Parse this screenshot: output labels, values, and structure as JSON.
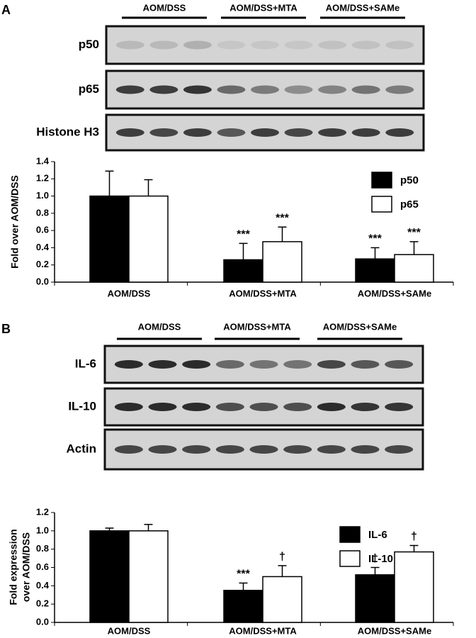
{
  "panels": [
    {
      "label": "A",
      "groups": [
        "AOM/DSS",
        "AOM/DSS+MTA",
        "AOM/DSS+SAMe"
      ],
      "blots": [
        "p50",
        "p65",
        "Histone H3"
      ]
    },
    {
      "label": "B",
      "groups": [
        "AOM/DSS",
        "AOM/DSS+MTA",
        "AOM/DSS+SAMe"
      ],
      "blots": [
        "IL-6",
        "IL-10",
        "Actin"
      ]
    }
  ],
  "chart_data": [
    {
      "type": "bar",
      "ylabel": [
        "Fold over AOM/DSS"
      ],
      "categories": [
        "AOM/DSS",
        "AOM/DSS+MTA",
        "AOM/DSS+SAMe"
      ],
      "series": [
        {
          "name": "p50",
          "color": "#000000",
          "values": [
            1.0,
            0.26,
            0.27
          ],
          "errors": [
            0.29,
            0.19,
            0.13
          ],
          "annotations": [
            null,
            "***",
            "***"
          ]
        },
        {
          "name": "p65",
          "color": "#ffffff",
          "values": [
            1.0,
            0.47,
            0.32
          ],
          "errors": [
            0.19,
            0.17,
            0.15
          ],
          "annotations": [
            null,
            "***",
            "***"
          ]
        }
      ],
      "ylim": [
        0,
        1.4
      ],
      "yticks": [
        {
          "value": 0,
          "label": "0.0"
        },
        0.2,
        0.4,
        0.6,
        0.8,
        {
          "value": 1,
          "label": "1.0"
        },
        1.2,
        1.4
      ],
      "legend": "top-right",
      "grid": false
    },
    {
      "type": "bar",
      "ylabel": [
        "Fold expression",
        "over AOM/DSS"
      ],
      "categories": [
        "AOM/DSS",
        "AOM/DSS+MTA",
        "AOM/DSS+SAMe"
      ],
      "series": [
        {
          "name": "IL-6",
          "color": "#000000",
          "values": [
            1.0,
            0.35,
            0.52
          ],
          "errors": [
            0.03,
            0.08,
            0.08
          ],
          "annotations": [
            null,
            "***",
            "†"
          ]
        },
        {
          "name": "IL-10",
          "color": "#ffffff",
          "values": [
            1.0,
            0.5,
            0.77
          ],
          "errors": [
            0.07,
            0.12,
            0.07
          ],
          "annotations": [
            null,
            "†",
            "†"
          ]
        }
      ],
      "ylim": [
        0,
        1.2
      ],
      "yticks": [
        {
          "value": 0,
          "label": "0.0"
        },
        0.2,
        0.4,
        0.6,
        0.8,
        {
          "value": 1,
          "label": "1.0"
        },
        1.2
      ],
      "legend": "top-right",
      "grid": false
    }
  ]
}
